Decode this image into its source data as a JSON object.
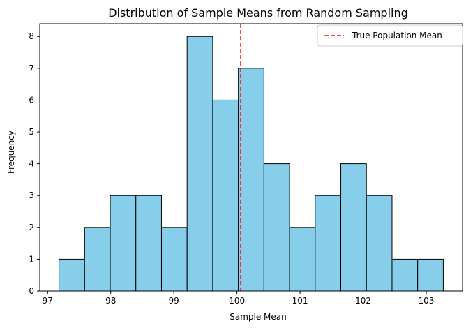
{
  "chart_data": {
    "type": "bar",
    "subtype": "histogram",
    "title": "Distribution of Sample Means from Random Sampling",
    "xlabel": "Sample Mean",
    "ylabel": "Frequency",
    "bin_edges": [
      97.18,
      97.586,
      97.992,
      98.398,
      98.804,
      99.21,
      99.616,
      100.022,
      100.428,
      100.834,
      101.24,
      101.646,
      102.052,
      102.458,
      102.864,
      103.27
    ],
    "values": [
      1,
      2,
      3,
      3,
      2,
      8,
      6,
      7,
      4,
      2,
      3,
      4,
      3,
      1,
      1
    ],
    "xlim": [
      96.875,
      103.575
    ],
    "ylim": [
      0,
      8.4
    ],
    "xticks": [
      97,
      98,
      99,
      100,
      101,
      102,
      103
    ],
    "yticks": [
      0,
      1,
      2,
      3,
      4,
      5,
      6,
      7,
      8
    ],
    "bar_color": "#87CEEB",
    "edge_color": "#000000",
    "reference_line": {
      "x": 100.06,
      "label": "True Population Mean",
      "color": "#ff0000",
      "style": "dashed"
    },
    "legend": {
      "placement": "top-right",
      "entries": [
        "True Population Mean"
      ]
    },
    "grid": false
  }
}
